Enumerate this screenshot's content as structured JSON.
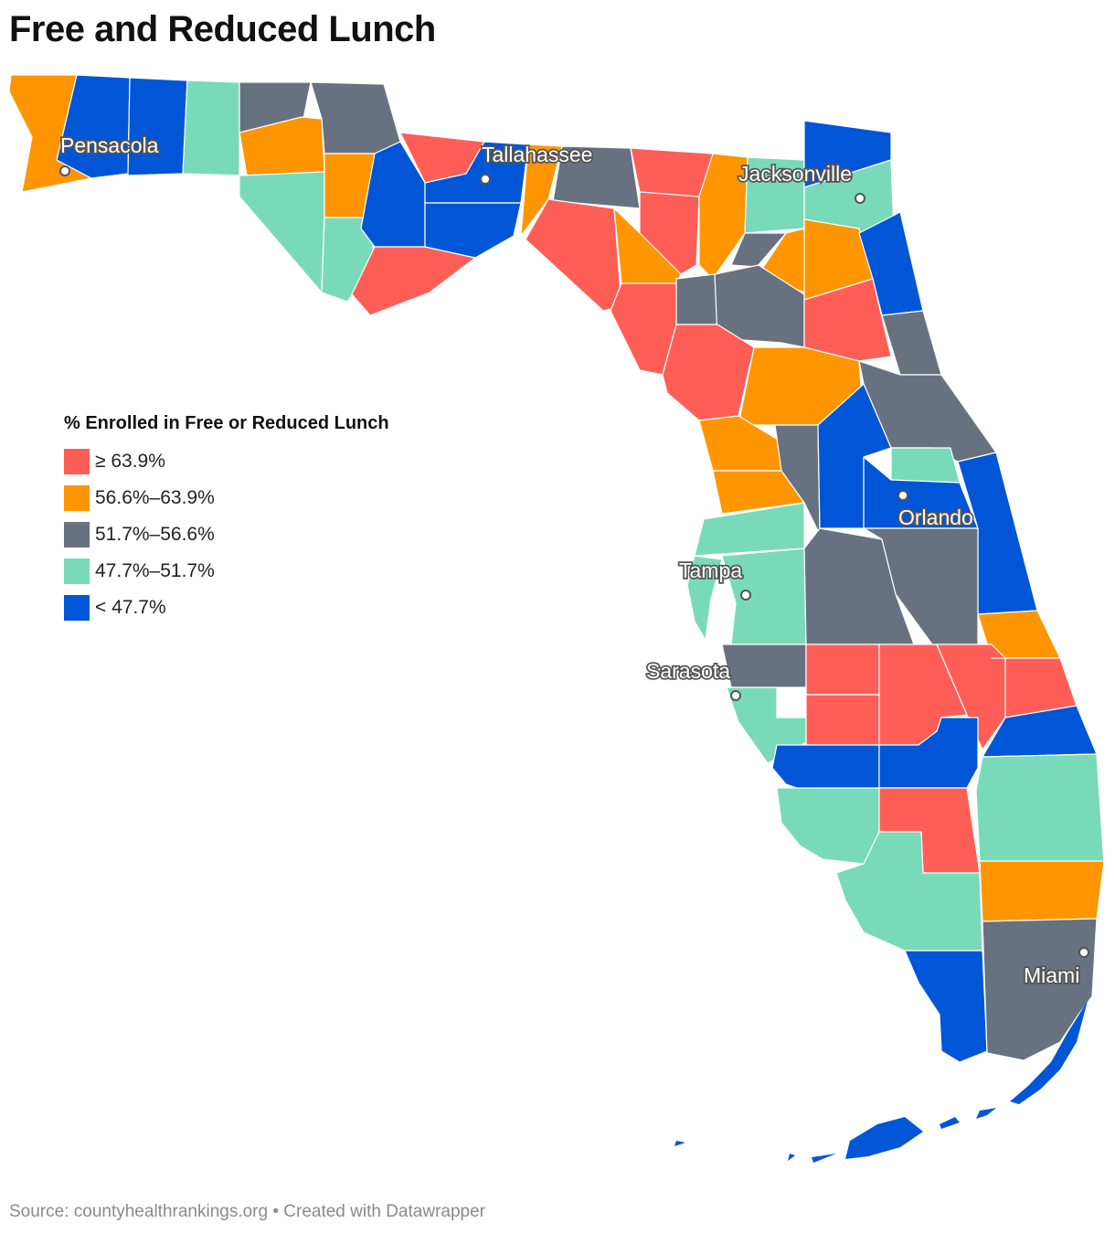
{
  "title": "Free and Reduced Lunch",
  "legend": {
    "title": "% Enrolled in Free or Reduced Lunch",
    "items": [
      {
        "label": "≥ 63.9%",
        "color": "#ff5e57"
      },
      {
        "label": "56.6%–63.9%",
        "color": "#ff9500"
      },
      {
        "label": "51.7%–56.6%",
        "color": "#68717f"
      },
      {
        "label": "47.7%–51.7%",
        "color": "#79dab9"
      },
      {
        "label": "< 47.7%",
        "color": "#0056d6"
      }
    ]
  },
  "cities": [
    "Pensacola",
    "Tallahassee",
    "Jacksonville",
    "Orlando",
    "Tampa",
    "Sarasota",
    "Miami"
  ],
  "footer": "Source: countyhealthrankings.org • Created with Datawrapper"
}
